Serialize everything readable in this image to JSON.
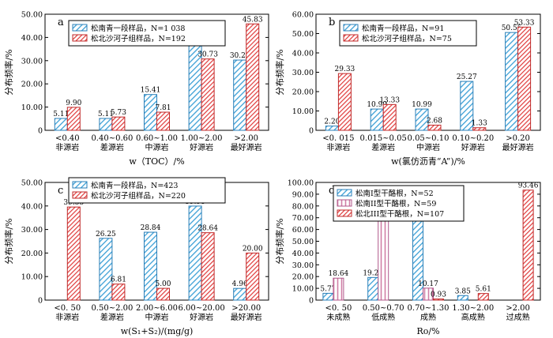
{
  "colors": {
    "blue": "#3b9fd6",
    "red": "#e03a3a"
  },
  "chart_data": [
    {
      "id": "a",
      "type": "bar",
      "panel_label": "a",
      "ylabel": "分布频率/%",
      "xlabel": "w（TOC）/%",
      "ylim": [
        0,
        50
      ],
      "yticks": [
        "0",
        "10.00",
        "20.00",
        "30.00",
        "40.00",
        "50.00"
      ],
      "categories": [
        [
          "<0.40",
          "非源岩"
        ],
        [
          "0.40~0.60",
          "差源岩"
        ],
        [
          "0.60~1.00",
          "中源岩"
        ],
        [
          "1.00~2.00",
          "好源岩"
        ],
        [
          ">2.00",
          "最好源岩"
        ]
      ],
      "series": [
        {
          "name": "松南青一段样品，N=1 038",
          "pattern": "blue",
          "values": [
            5.11,
            5.11,
            15.41,
            44.12,
            30.25
          ],
          "labels": [
            "5.11",
            "5.11",
            "15.41",
            "44.12",
            "30.25"
          ]
        },
        {
          "name": "松北沙河子组样品，N=192",
          "pattern": "red",
          "values": [
            9.9,
            5.73,
            7.81,
            30.73,
            45.83
          ],
          "labels": [
            "9.90",
            "5.73",
            "7.81",
            "30.73",
            "45.83"
          ]
        }
      ]
    },
    {
      "id": "b",
      "type": "bar",
      "panel_label": "b",
      "ylabel": "分布频率/%",
      "xlabel": "w(氯仿沥青“A”)/%",
      "ylim": [
        0,
        60
      ],
      "yticks": [
        "0",
        "10.00",
        "20.00",
        "30.00",
        "40.00",
        "50.00",
        "60.00"
      ],
      "categories": [
        [
          "<0. 015",
          "非源岩"
        ],
        [
          "0.015~0.05",
          "差源岩"
        ],
        [
          "0.05~0.10",
          "中源岩"
        ],
        [
          "0.10~0.20",
          "好源岩"
        ],
        [
          ">0.20",
          "最好源岩"
        ]
      ],
      "series": [
        {
          "name": "松南青一段样品，N=91",
          "pattern": "blue",
          "values": [
            2.2,
            10.99,
            10.99,
            25.27,
            50.55
          ],
          "labels": [
            "2.20",
            "10.99",
            "10.99",
            "25.27",
            "50.55"
          ]
        },
        {
          "name": "松北沙河子组样品，N=75",
          "pattern": "red",
          "values": [
            29.33,
            13.33,
            2.68,
            1.33,
            53.33
          ],
          "labels": [
            "29.33",
            "13.33",
            "2.68",
            "1.33",
            "53.33"
          ]
        }
      ]
    },
    {
      "id": "c",
      "type": "bar",
      "panel_label": "c",
      "ylabel": "分布频率/%",
      "xlabel": "w(S₁+S₂)/(mg/g)",
      "ylim": [
        0,
        50
      ],
      "yticks": [
        "0",
        "10.00",
        "20.00",
        "30.00",
        "40.00",
        "50.00"
      ],
      "categories": [
        [
          "<0. 50",
          "非源岩"
        ],
        [
          "0.50~2.00",
          "差源岩"
        ],
        [
          "2.00~6.00",
          "中源岩"
        ],
        [
          "6.00~20.00",
          "好源岩"
        ],
        [
          ">20.00",
          "最好源岩"
        ]
      ],
      "series": [
        {
          "name": "松南青一段样品，N=423",
          "pattern": "blue",
          "values": [
            0,
            26.25,
            28.84,
            39.95,
            4.96
          ],
          "labels": [
            "",
            "26.25",
            "28.84",
            "39.95",
            "4.96"
          ]
        },
        {
          "name": "松北沙河子组样品，N=220",
          "pattern": "red",
          "values": [
            39.55,
            6.81,
            5.0,
            28.64,
            20.0
          ],
          "labels": [
            "39.55",
            "6.81",
            "5.00",
            "28.64",
            "20.00"
          ]
        }
      ]
    },
    {
      "id": "d",
      "type": "bar",
      "panel_label": "d",
      "ylabel": "分布频率/%",
      "xlabel": "Ro/%",
      "ylim": [
        0,
        100
      ],
      "yticks": [
        "0",
        "10.00",
        "20.00",
        "30.00",
        "40.00",
        "50.00",
        "60.00",
        "70.00",
        "80.00",
        "90.00",
        "100.00"
      ],
      "categories": [
        [
          "<0. 50",
          "未成熟"
        ],
        [
          "0.50~0.70",
          "低成熟"
        ],
        [
          "0.70~1.30",
          "成熟"
        ],
        [
          "1.30~2.00",
          "高成熟"
        ],
        [
          ">2.00",
          "过成熟"
        ]
      ],
      "series": [
        {
          "name": "松南I型干酪根，N=52",
          "pattern": "blue",
          "values": [
            5.77,
            19.23,
            71.15,
            3.85,
            0
          ],
          "labels": [
            "5.77",
            "19.23",
            "71.15",
            "3.85",
            ""
          ]
        },
        {
          "name": "松南II型干酪根，N=59",
          "pattern": "pink",
          "values": [
            18.64,
            71.19,
            10.17,
            0,
            0
          ],
          "labels": [
            "18.64",
            "71.19",
            "10.17",
            "",
            ""
          ]
        },
        {
          "name": "松北III型干酪根，N=107",
          "pattern": "red",
          "values": [
            0,
            0,
            0.93,
            5.61,
            93.46
          ],
          "labels": [
            "",
            "",
            "0.93",
            "5.61",
            "93.46"
          ]
        }
      ]
    }
  ]
}
